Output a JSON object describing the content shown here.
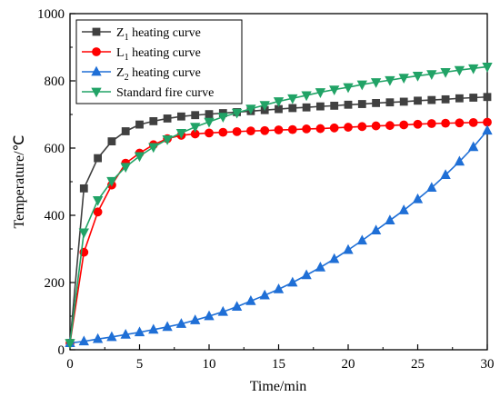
{
  "chart_data": {
    "type": "line",
    "xlabel": "Time/min",
    "ylabel": "Temperature/℃",
    "xlim": [
      0,
      30
    ],
    "ylim": [
      0,
      1000
    ],
    "xticks": [
      0,
      5,
      10,
      15,
      20,
      25,
      30
    ],
    "yticks": [
      0,
      200,
      400,
      600,
      800,
      1000
    ],
    "grid": false,
    "legend_position": "top-left",
    "series": [
      {
        "name": "Z1 heating curve",
        "name_main": "Z",
        "name_sub": "1",
        "name_rest": " heating curve",
        "color": "#404040",
        "marker": "square",
        "x": [
          0,
          1,
          2,
          3,
          4,
          5,
          6,
          7,
          8,
          9,
          10,
          11,
          12,
          13,
          14,
          15,
          16,
          17,
          18,
          19,
          20,
          21,
          22,
          23,
          24,
          25,
          26,
          27,
          28,
          29,
          30
        ],
        "y": [
          20,
          480,
          570,
          620,
          650,
          670,
          680,
          688,
          694,
          698,
          701,
          704,
          707,
          710,
          713,
          716,
          719,
          721,
          724,
          726,
          729,
          731,
          734,
          736,
          738,
          741,
          743,
          745,
          748,
          750,
          752
        ]
      },
      {
        "name": "L1 heating curve",
        "name_main": "L",
        "name_sub": "1",
        "name_rest": " heating curve",
        "color": "#ff0000",
        "marker": "circle",
        "x": [
          0,
          1,
          2,
          3,
          4,
          5,
          6,
          7,
          8,
          9,
          10,
          11,
          12,
          13,
          14,
          15,
          16,
          17,
          18,
          19,
          20,
          21,
          22,
          23,
          24,
          25,
          26,
          27,
          28,
          29,
          30
        ],
        "y": [
          20,
          290,
          410,
          490,
          555,
          585,
          610,
          628,
          638,
          642,
          645,
          647,
          649,
          651,
          652,
          654,
          655,
          657,
          658,
          660,
          662,
          664,
          666,
          667,
          669,
          671,
          673,
          674,
          675,
          676,
          677
        ]
      },
      {
        "name": "Z2 heating curve",
        "name_main": "Z",
        "name_sub": "2",
        "name_rest": " heating curve",
        "color": "#1f6fd6",
        "marker": "triangle-up",
        "x": [
          0,
          1,
          2,
          3,
          4,
          5,
          6,
          7,
          8,
          9,
          10,
          11,
          12,
          13,
          14,
          15,
          16,
          17,
          18,
          19,
          20,
          21,
          22,
          23,
          24,
          25,
          26,
          27,
          28,
          29,
          30
        ],
        "y": [
          20,
          25,
          32,
          38,
          45,
          52,
          60,
          68,
          77,
          88,
          100,
          113,
          128,
          145,
          162,
          180,
          200,
          222,
          245,
          270,
          297,
          325,
          355,
          385,
          415,
          448,
          482,
          520,
          560,
          603,
          652
        ]
      },
      {
        "name": "Standard fire curve",
        "name_main": "Standard fire curve",
        "name_sub": "",
        "name_rest": "",
        "color": "#21a366",
        "marker": "triangle-down",
        "x": [
          0,
          1,
          2,
          3,
          4,
          5,
          6,
          7,
          8,
          9,
          10,
          11,
          12,
          13,
          14,
          15,
          16,
          17,
          18,
          19,
          20,
          21,
          22,
          23,
          24,
          25,
          26,
          27,
          28,
          29,
          30
        ],
        "y": [
          20,
          349,
          445,
          502,
          544,
          576,
          603,
          626,
          645,
          663,
          678,
          693,
          705,
          717,
          728,
          739,
          748,
          757,
          766,
          774,
          781,
          789,
          796,
          802,
          809,
          815,
          820,
          826,
          832,
          837,
          842
        ]
      }
    ]
  }
}
